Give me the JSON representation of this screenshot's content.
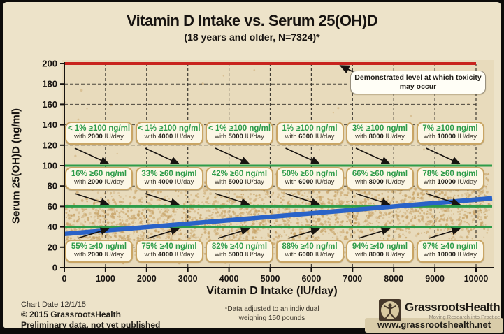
{
  "header": {
    "title": "Vitamin D Intake vs. Serum 25(OH)D",
    "subtitle": "(18 years and older, N=7324)*"
  },
  "chart_data": {
    "type": "scatter",
    "title": "Vitamin D Intake vs. Serum 25(OH)D",
    "subtitle": "(18 years and older, N=7324)*",
    "xlabel": "Vitamin D Intake (IU/day)",
    "ylabel": "Serum 25(OH)D (ng/ml)",
    "xlim": [
      0,
      10000
    ],
    "ylim": [
      0,
      200
    ],
    "x_ticks": [
      0,
      1000,
      2000,
      3000,
      4000,
      5000,
      6000,
      7000,
      8000,
      9000,
      10000
    ],
    "y_ticks": [
      0,
      20,
      40,
      60,
      80,
      100,
      120,
      140,
      160,
      180,
      200
    ],
    "grid": "dashed",
    "reference_lines": [
      {
        "y": 200,
        "color": "#c8231d",
        "style": "solid",
        "meaning": "toxicity threshold"
      },
      {
        "y": 100,
        "color": "#2e9c4a",
        "style": "solid",
        "meaning": "100 ng/ml level"
      },
      {
        "y": 60,
        "color": "#2e9c4a",
        "style": "solid",
        "meaning": "60 ng/ml level"
      },
      {
        "y": 40,
        "color": "#2e9c4a",
        "style": "solid",
        "meaning": "40 ng/ml level"
      }
    ],
    "trend_line": {
      "color": "#2a63c8",
      "points": [
        {
          "x": 0,
          "y": 33
        },
        {
          "x": 10000,
          "y": 68
        }
      ]
    },
    "scatter_summary": "dense cloud of individual serum measurements, concentrated ~15-90 ng/ml across the full intake range, with sparse points up to ~195 ng/ml",
    "scatter_color": "#c7a266",
    "toxicity_annotation": "Demonstrated level at which toxicity may occur",
    "doses": [
      "2000",
      "4000",
      "5000",
      "6000",
      "8000",
      "10000"
    ],
    "box_text": {
      "prefix": "with",
      "suffix": "IU/day"
    },
    "annotation_rows": [
      {
        "threshold_value": 100,
        "threshold_label": "≥100 ng/ml",
        "arrow": "down",
        "percentages": [
          "< 1%",
          "< 1%",
          "< 1%",
          "1%",
          "3%",
          "7%"
        ]
      },
      {
        "threshold_value": 60,
        "threshold_label": "≥60 ng/ml",
        "arrow": "down",
        "percentages": [
          "16%",
          "33%",
          "42%",
          "50%",
          "66%",
          "78%"
        ]
      },
      {
        "threshold_value": 40,
        "threshold_label": "≥40 ng/ml",
        "arrow": "up",
        "percentages": [
          "55%",
          "75%",
          "82%",
          "88%",
          "94%",
          "97%"
        ]
      }
    ]
  },
  "footer": {
    "left": [
      "Chart Date 12/1/15",
      "© 2015 GrassrootsHealth",
      "Preliminary data, not yet published"
    ],
    "note": [
      "*Data adjusted to an individual",
      "weighing 150 pounds"
    ],
    "brand": {
      "name": "GrassrootsHealth",
      "tagline": "Moving Research into Practice",
      "website": "www.grassrootshealth.net"
    }
  }
}
